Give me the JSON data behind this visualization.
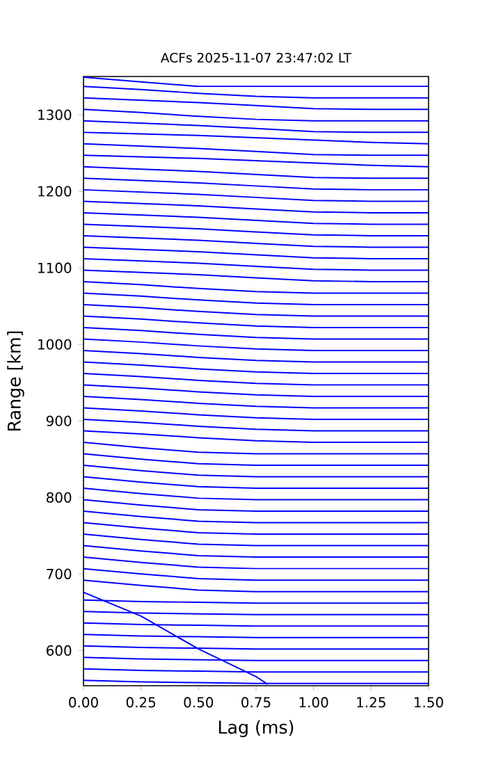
{
  "chart_data": {
    "type": "line",
    "title": "ACFs 2025-11-07 23:47:02 LT",
    "xlabel": "Lag (ms)",
    "ylabel": "Range [km]",
    "x": [
      0,
      0.25,
      0.5,
      0.75,
      1.0,
      1.25,
      1.5
    ],
    "xlim": [
      0,
      1.5
    ],
    "ylim": [
      554,
      1350
    ],
    "xticks": [
      {
        "value": 0,
        "label": "0.00"
      },
      {
        "value": 0.25,
        "label": "0.25"
      },
      {
        "value": 0.5,
        "label": "0.50"
      },
      {
        "value": 0.75,
        "label": "0.75"
      },
      {
        "value": 1.0,
        "label": "1.00"
      },
      {
        "value": 1.25,
        "label": "1.25"
      },
      {
        "value": 1.5,
        "label": "1.50"
      }
    ],
    "yticks": [
      600,
      700,
      800,
      900,
      1000,
      1100,
      1200,
      1300
    ],
    "grid": false,
    "marker": "none",
    "line_style": "solid",
    "series": [
      {
        "color": "#0000ff",
        "x": [
          0,
          0.25,
          0.5,
          0.75,
          0.8
        ],
        "values": [
          676,
          645,
          602,
          566,
          556
        ]
      },
      {
        "color": "#0000ff",
        "values": [
          561,
          559,
          558,
          557,
          557,
          557,
          557
        ]
      },
      {
        "color": "#0000ff",
        "values": [
          576,
          574,
          573,
          572,
          572,
          572,
          572
        ]
      },
      {
        "color": "#0000ff",
        "values": [
          591,
          589,
          588,
          587,
          587,
          587,
          587
        ]
      },
      {
        "color": "#0000ff",
        "values": [
          606,
          604,
          603,
          602,
          602,
          602,
          602
        ]
      },
      {
        "color": "#0000ff",
        "values": [
          621,
          619,
          618,
          617,
          617,
          617,
          617
        ]
      },
      {
        "color": "#0000ff",
        "values": [
          636,
          634,
          633,
          632,
          632,
          632,
          632
        ]
      },
      {
        "color": "#0000ff",
        "values": [
          651,
          649,
          648,
          647,
          647,
          647,
          647
        ]
      },
      {
        "color": "#0000ff",
        "values": [
          666,
          664,
          663,
          662,
          662,
          662,
          662
        ]
      },
      {
        "color": "#0000ff",
        "values": [
          692,
          685,
          679,
          677,
          677,
          677,
          677
        ]
      },
      {
        "color": "#0000ff",
        "values": [
          707,
          700,
          694,
          692,
          692,
          692,
          692
        ]
      },
      {
        "color": "#0000ff",
        "values": [
          722,
          715,
          709,
          707,
          707,
          707,
          707
        ]
      },
      {
        "color": "#0000ff",
        "values": [
          737,
          730,
          724,
          722,
          722,
          722,
          722
        ]
      },
      {
        "color": "#0000ff",
        "values": [
          752,
          745,
          739,
          737,
          737,
          737,
          737
        ]
      },
      {
        "color": "#0000ff",
        "values": [
          767,
          760,
          754,
          752,
          752,
          752,
          752
        ]
      },
      {
        "color": "#0000ff",
        "values": [
          782,
          775,
          769,
          767,
          767,
          767,
          767
        ]
      },
      {
        "color": "#0000ff",
        "values": [
          797,
          790,
          784,
          782,
          782,
          782,
          782
        ]
      },
      {
        "color": "#0000ff",
        "values": [
          812,
          805,
          799,
          797,
          797,
          797,
          797
        ]
      },
      {
        "color": "#0000ff",
        "values": [
          827,
          820,
          814,
          812,
          812,
          812,
          812
        ]
      },
      {
        "color": "#0000ff",
        "values": [
          842,
          835,
          829,
          827,
          827,
          827,
          827
        ]
      },
      {
        "color": "#0000ff",
        "values": [
          857,
          850,
          844,
          842,
          842,
          842,
          842
        ]
      },
      {
        "color": "#0000ff",
        "values": [
          872,
          865,
          859,
          857,
          857,
          857,
          857
        ]
      },
      {
        "color": "#0000ff",
        "values": [
          887,
          883,
          878,
          874,
          872,
          872,
          872
        ]
      },
      {
        "color": "#0000ff",
        "values": [
          902,
          898,
          893,
          889,
          887,
          887,
          887
        ]
      },
      {
        "color": "#0000ff",
        "values": [
          917,
          913,
          908,
          904,
          902,
          902,
          902
        ]
      },
      {
        "color": "#0000ff",
        "values": [
          932,
          928,
          923,
          919,
          917,
          917,
          917
        ]
      },
      {
        "color": "#0000ff",
        "values": [
          947,
          943,
          938,
          934,
          932,
          932,
          932
        ]
      },
      {
        "color": "#0000ff",
        "values": [
          962,
          958,
          953,
          949,
          947,
          947,
          947
        ]
      },
      {
        "color": "#0000ff",
        "values": [
          977,
          973,
          968,
          964,
          962,
          962,
          962
        ]
      },
      {
        "color": "#0000ff",
        "values": [
          992,
          988,
          983,
          979,
          977,
          977,
          977
        ]
      },
      {
        "color": "#0000ff",
        "values": [
          1007,
          1003,
          998,
          994,
          992,
          992,
          992
        ]
      },
      {
        "color": "#0000ff",
        "values": [
          1022,
          1018,
          1013,
          1009,
          1007,
          1007,
          1007
        ]
      },
      {
        "color": "#0000ff",
        "values": [
          1037,
          1033,
          1028,
          1024,
          1022,
          1022,
          1022
        ]
      },
      {
        "color": "#0000ff",
        "values": [
          1052,
          1048,
          1043,
          1039,
          1037,
          1037,
          1037
        ]
      },
      {
        "color": "#0000ff",
        "values": [
          1067,
          1063,
          1058,
          1054,
          1052,
          1052,
          1052
        ]
      },
      {
        "color": "#0000ff",
        "values": [
          1082,
          1078,
          1073,
          1069,
          1067,
          1067,
          1067
        ]
      },
      {
        "color": "#0000ff",
        "values": [
          1097,
          1094,
          1091,
          1087,
          1083,
          1082,
          1082
        ]
      },
      {
        "color": "#0000ff",
        "values": [
          1112,
          1109,
          1106,
          1102,
          1098,
          1097,
          1097
        ]
      },
      {
        "color": "#0000ff",
        "values": [
          1127,
          1124,
          1121,
          1117,
          1113,
          1112,
          1112
        ]
      },
      {
        "color": "#0000ff",
        "values": [
          1142,
          1139,
          1136,
          1132,
          1128,
          1127,
          1127
        ]
      },
      {
        "color": "#0000ff",
        "values": [
          1157,
          1154,
          1151,
          1147,
          1143,
          1142,
          1142
        ]
      },
      {
        "color": "#0000ff",
        "values": [
          1172,
          1169,
          1166,
          1162,
          1158,
          1157,
          1157
        ]
      },
      {
        "color": "#0000ff",
        "values": [
          1187,
          1184,
          1181,
          1177,
          1173,
          1172,
          1172
        ]
      },
      {
        "color": "#0000ff",
        "values": [
          1202,
          1199,
          1196,
          1192,
          1188,
          1187,
          1187
        ]
      },
      {
        "color": "#0000ff",
        "values": [
          1217,
          1214,
          1211,
          1207,
          1203,
          1202,
          1202
        ]
      },
      {
        "color": "#0000ff",
        "values": [
          1232,
          1229,
          1226,
          1222,
          1218,
          1217,
          1217
        ]
      },
      {
        "color": "#0000ff",
        "values": [
          1247,
          1245,
          1243,
          1240,
          1237,
          1234,
          1232
        ]
      },
      {
        "color": "#0000ff",
        "values": [
          1262,
          1259,
          1256,
          1252,
          1248,
          1247,
          1247
        ]
      },
      {
        "color": "#0000ff",
        "values": [
          1277,
          1275,
          1273,
          1270,
          1267,
          1264,
          1262
        ]
      },
      {
        "color": "#0000ff",
        "values": [
          1292,
          1289,
          1286,
          1282,
          1278,
          1277,
          1277
        ]
      },
      {
        "color": "#0000ff",
        "values": [
          1307,
          1303,
          1298,
          1294,
          1292,
          1292,
          1292
        ]
      },
      {
        "color": "#0000ff",
        "values": [
          1322,
          1319,
          1316,
          1312,
          1308,
          1307,
          1307
        ]
      },
      {
        "color": "#0000ff",
        "values": [
          1337,
          1333,
          1328,
          1324,
          1322,
          1322,
          1322
        ]
      },
      {
        "color": "#0000ff",
        "values": [
          1349,
          1343,
          1337,
          1337,
          1337,
          1337,
          1337
        ]
      }
    ]
  }
}
